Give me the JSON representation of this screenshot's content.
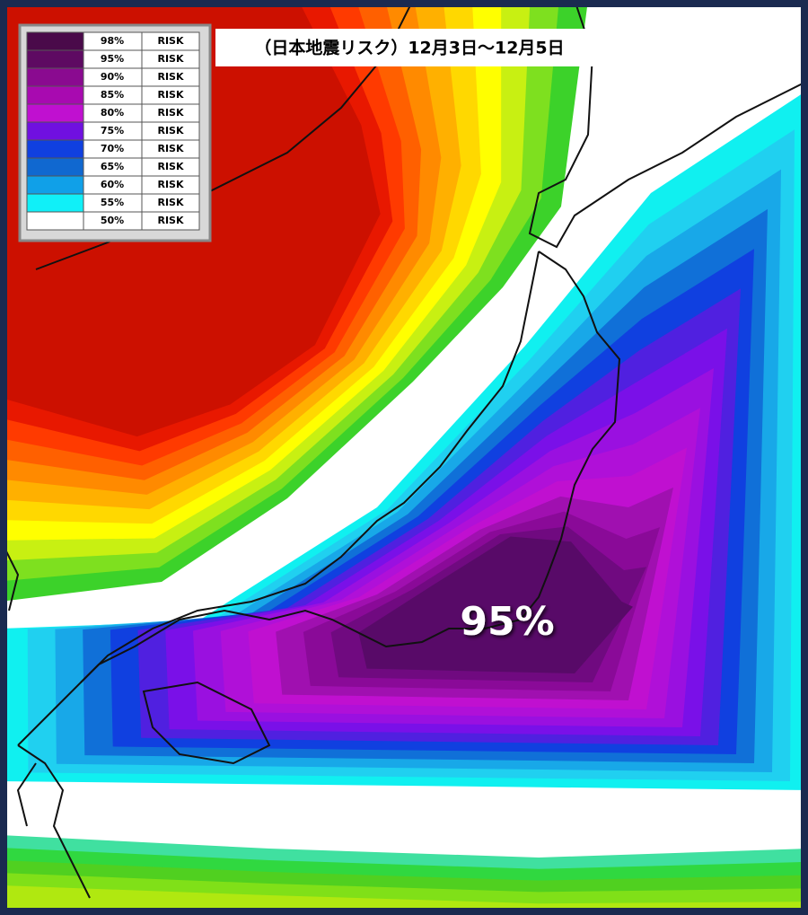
{
  "title": "（日本地震リスク）12月3日～12月5日",
  "annotation": "95%",
  "legend": {
    "rows": [
      {
        "label": "98%",
        "risk": "RISK",
        "color": "#4a0a4a"
      },
      {
        "label": "95%",
        "risk": "RISK",
        "color": "#5e0a62"
      },
      {
        "label": "90%",
        "risk": "RISK",
        "color": "#8a0a90"
      },
      {
        "label": "85%",
        "risk": "RISK",
        "color": "#a80ab0"
      },
      {
        "label": "80%",
        "risk": "RISK",
        "color": "#c010d0"
      },
      {
        "label": "75%",
        "risk": "RISK",
        "color": "#7010e0"
      },
      {
        "label": "70%",
        "risk": "RISK",
        "color": "#1040e0"
      },
      {
        "label": "65%",
        "risk": "RISK",
        "color": "#1068d0"
      },
      {
        "label": "60%",
        "risk": "RISK",
        "color": "#10a0e8"
      },
      {
        "label": "55%",
        "risk": "RISK",
        "color": "#10f0f8"
      },
      {
        "label": "50%",
        "risk": "RISK",
        "color": "#ffffff"
      }
    ]
  }
}
